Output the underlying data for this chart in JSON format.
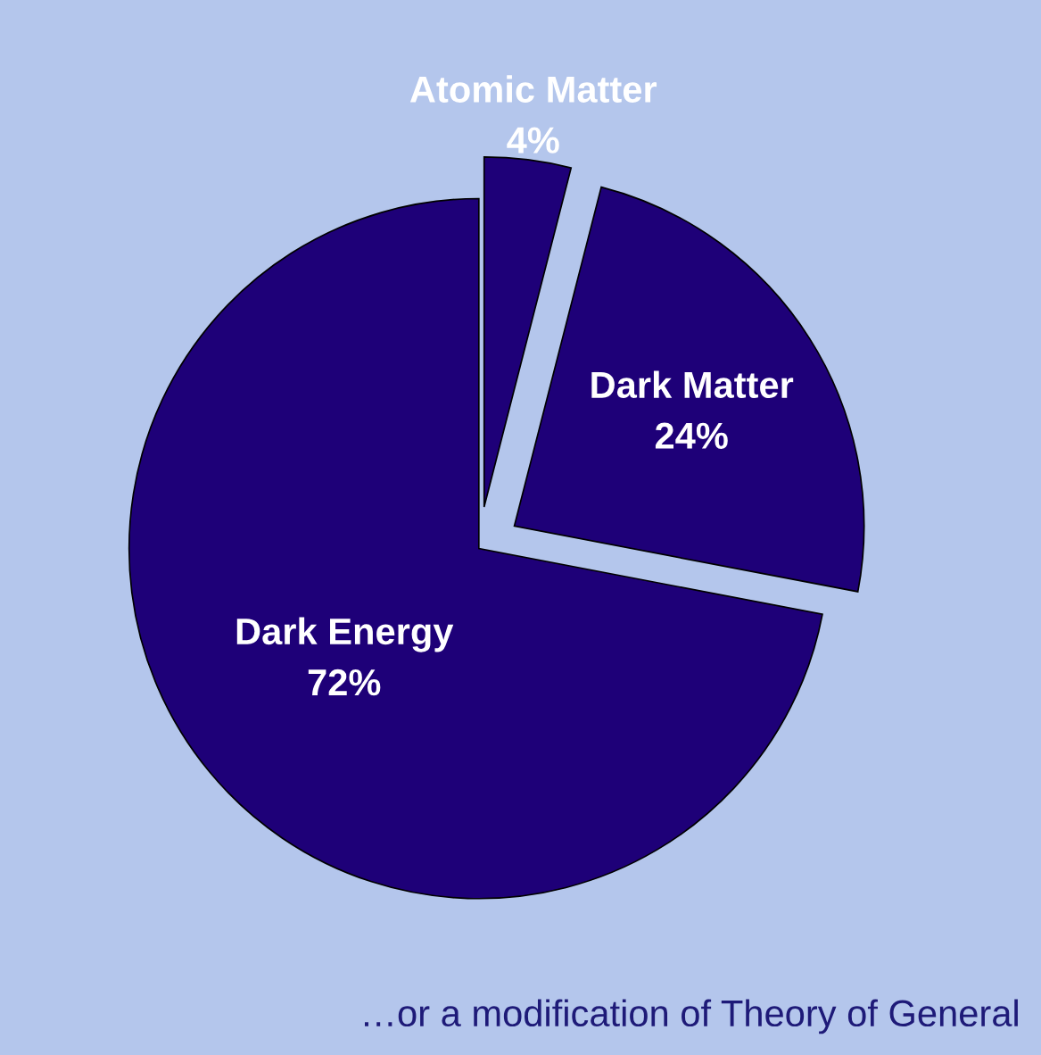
{
  "chart_data": {
    "type": "pie",
    "categories": [
      "Dark Energy",
      "Dark Matter",
      "Atomic Matter"
    ],
    "values": [
      72,
      24,
      4
    ],
    "colors": [
      "#1e0078",
      "#1e0078",
      "#1e0078"
    ],
    "value_labels": [
      "72%",
      "24%",
      "4%"
    ],
    "legend": false,
    "annotations": [
      "…or a modification of Theory of General"
    ]
  }
}
